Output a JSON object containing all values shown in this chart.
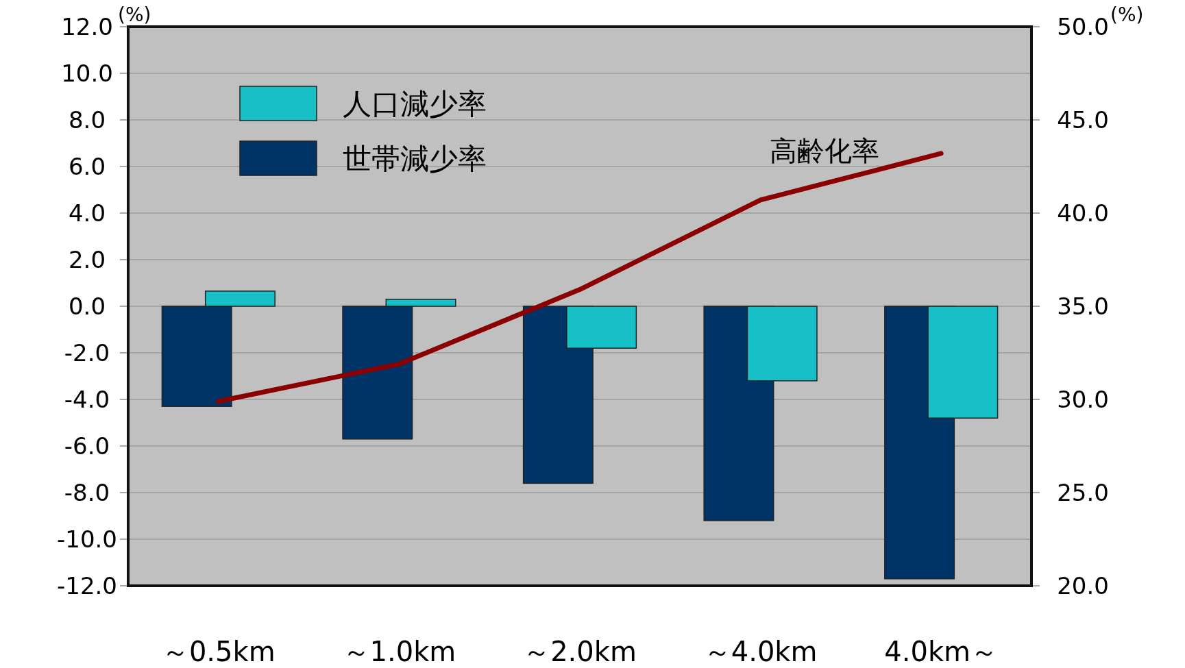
{
  "chart_data": {
    "type": "bar",
    "categories": [
      "～0.5km",
      "～1.0km",
      "～2.0km",
      "～4.0km",
      "4.0km～"
    ],
    "ylabel": "(%)",
    "y2label": "(%)",
    "series": [
      {
        "name": "世帯減少率",
        "color": "#003366",
        "values": [
          -4.3,
          -5.7,
          -7.6,
          -9.2,
          -11.7
        ]
      },
      {
        "name": "人口減少率",
        "color": "#17c0c6",
        "values": [
          0.65,
          0.3,
          -1.8,
          -3.2,
          -4.8
        ]
      },
      {
        "name": "高齢化率",
        "type": "line",
        "axis": "y2",
        "color": "#8b0000",
        "values": [
          29.9,
          31.9,
          35.9,
          40.7,
          43.2
        ]
      }
    ],
    "ylim": [
      -12,
      12
    ],
    "yticks": [
      {
        "value": -12,
        "label": "-12.0"
      },
      {
        "value": -10,
        "label": "-10.0"
      },
      {
        "value": -8,
        "label": "-8.0"
      },
      {
        "value": -6,
        "label": "-6.0"
      },
      {
        "value": -4,
        "label": "-4.0"
      },
      {
        "value": -2,
        "label": "-2.0"
      },
      {
        "value": 0,
        "label": "0.0"
      },
      {
        "value": 2,
        "label": "2.0"
      },
      {
        "value": 4,
        "label": "4.0"
      },
      {
        "value": 6,
        "label": "6.0"
      },
      {
        "value": 8,
        "label": "8.0"
      },
      {
        "value": 10,
        "label": "10.0"
      },
      {
        "value": 12,
        "label": "12.0"
      }
    ],
    "y2lim": [
      20,
      50
    ],
    "y2ticks": [
      {
        "value": 20,
        "label": "20.0"
      },
      {
        "value": 25,
        "label": "25.0"
      },
      {
        "value": 30,
        "label": "30.0"
      },
      {
        "value": 35,
        "label": "35.0"
      },
      {
        "value": 40,
        "label": "40.0"
      },
      {
        "value": 45,
        "label": "45.0"
      },
      {
        "value": 50,
        "label": "50.0"
      }
    ],
    "grid": "y",
    "legend": "top left"
  }
}
